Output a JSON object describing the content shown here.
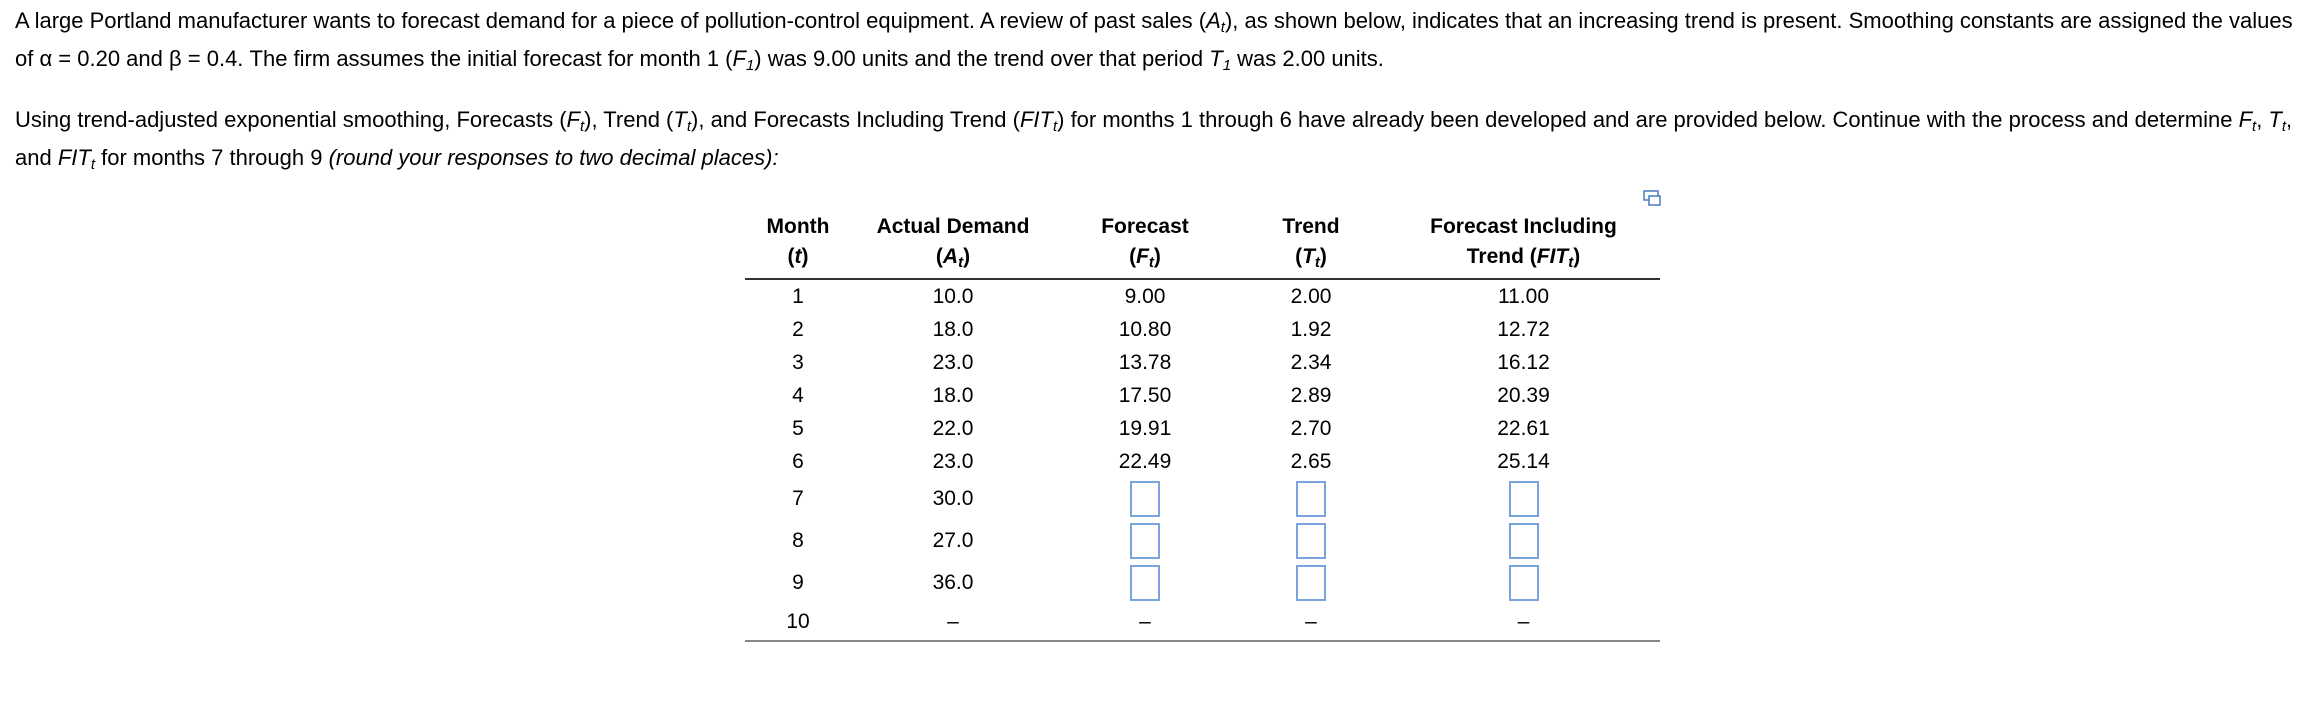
{
  "intro": [
    "A large Portland manufacturer wants to forecast demand for a piece of pollution-control equipment. A review of past sales (",
    "A",
    "t",
    "), as shown below, indicates that an increasing trend is present.  Smoothing constants are assigned the values of α = 0.20 and β = 0.4. The firm assumes the initial forecast for month 1 (",
    "F",
    "1",
    ") was 9.00 units and the trend over that period ",
    "T",
    "1",
    " was 2.00 units."
  ],
  "instructions": [
    "Using trend-adjusted exponential smoothing, Forecasts (",
    "F",
    "t",
    "), Trend (",
    "T",
    "t",
    "), and Forecasts Including Trend (",
    "FIT",
    "t",
    ") for months 1 through 6 have already been developed and are provided below.  Continue with the process and determine ",
    "F",
    "t",
    ", ",
    "T",
    "t",
    ", and ",
    "FIT",
    "t",
    " for months 7 through 9 ",
    "(round your responses to two decimal places):"
  ],
  "table": {
    "headers": [
      {
        "line1": "Month",
        "line2": [
          "(",
          "t",
          ")"
        ]
      },
      {
        "line1": "Actual Demand",
        "line2": [
          "(",
          "A",
          "t",
          ")"
        ]
      },
      {
        "line1": "Forecast",
        "line2": [
          "(",
          "F",
          "t",
          ")"
        ]
      },
      {
        "line1": "Trend",
        "line2": [
          "(",
          "T",
          "t",
          ")"
        ]
      },
      {
        "line1": "Forecast Including",
        "line2": [
          "Trend (",
          "FIT",
          "t",
          ")"
        ]
      }
    ],
    "rows": [
      [
        "1",
        "10.0",
        "9.00",
        "2.00",
        "11.00"
      ],
      [
        "2",
        "18.0",
        "10.80",
        "1.92",
        "12.72"
      ],
      [
        "3",
        "23.0",
        "13.78",
        "2.34",
        "16.12"
      ],
      [
        "4",
        "18.0",
        "17.50",
        "2.89",
        "20.39"
      ],
      [
        "5",
        "22.0",
        "19.91",
        "2.70",
        "22.61"
      ],
      [
        "6",
        "23.0",
        "22.49",
        "2.65",
        "25.14"
      ],
      [
        "7",
        "30.0",
        null,
        null,
        null
      ],
      [
        "8",
        "27.0",
        null,
        null,
        null
      ],
      [
        "9",
        "36.0",
        null,
        null,
        null
      ],
      [
        "10",
        "–",
        "–",
        "–",
        "–"
      ]
    ]
  }
}
